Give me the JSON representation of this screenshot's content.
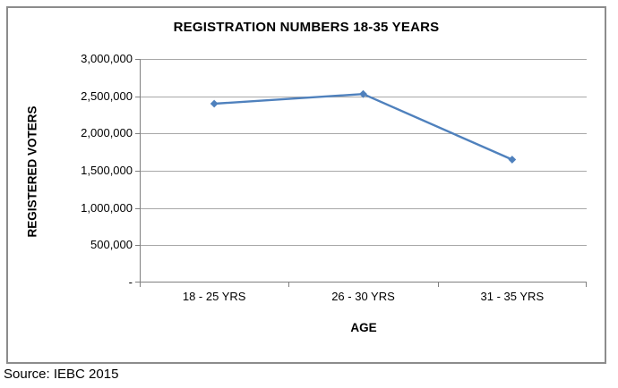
{
  "source_note": "Source: IEBC 2015",
  "colors": {
    "line": "#4F81BD",
    "marker": "#4F81BD",
    "gridline": "#A8A8A8",
    "axis_line": "#7F7F7F",
    "frame_border": "#8C8C8C",
    "text": "#000000",
    "background": "#FFFFFF"
  },
  "chart_data": {
    "type": "line",
    "title": "REGISTRATION NUMBERS 18-35 YEARS",
    "xlabel": "AGE",
    "ylabel": "REGISTERED VOTERS",
    "categories": [
      "18 - 25 YRS",
      "26 - 30 YRS",
      "31 - 35 YRS"
    ],
    "series": [
      {
        "name": "Registered voters",
        "values": [
          2400000,
          2530000,
          1650000
        ]
      }
    ],
    "ylim": [
      0,
      3000000
    ],
    "ytick_step": 500000,
    "ytick_labels_bottom_up": [
      "-",
      "500,000",
      "1,000,000",
      "1,500,000",
      "2,000,000",
      "2,500,000",
      "3,000,000"
    ],
    "grid": true,
    "legend": "none",
    "marker_shape": "diamond"
  }
}
